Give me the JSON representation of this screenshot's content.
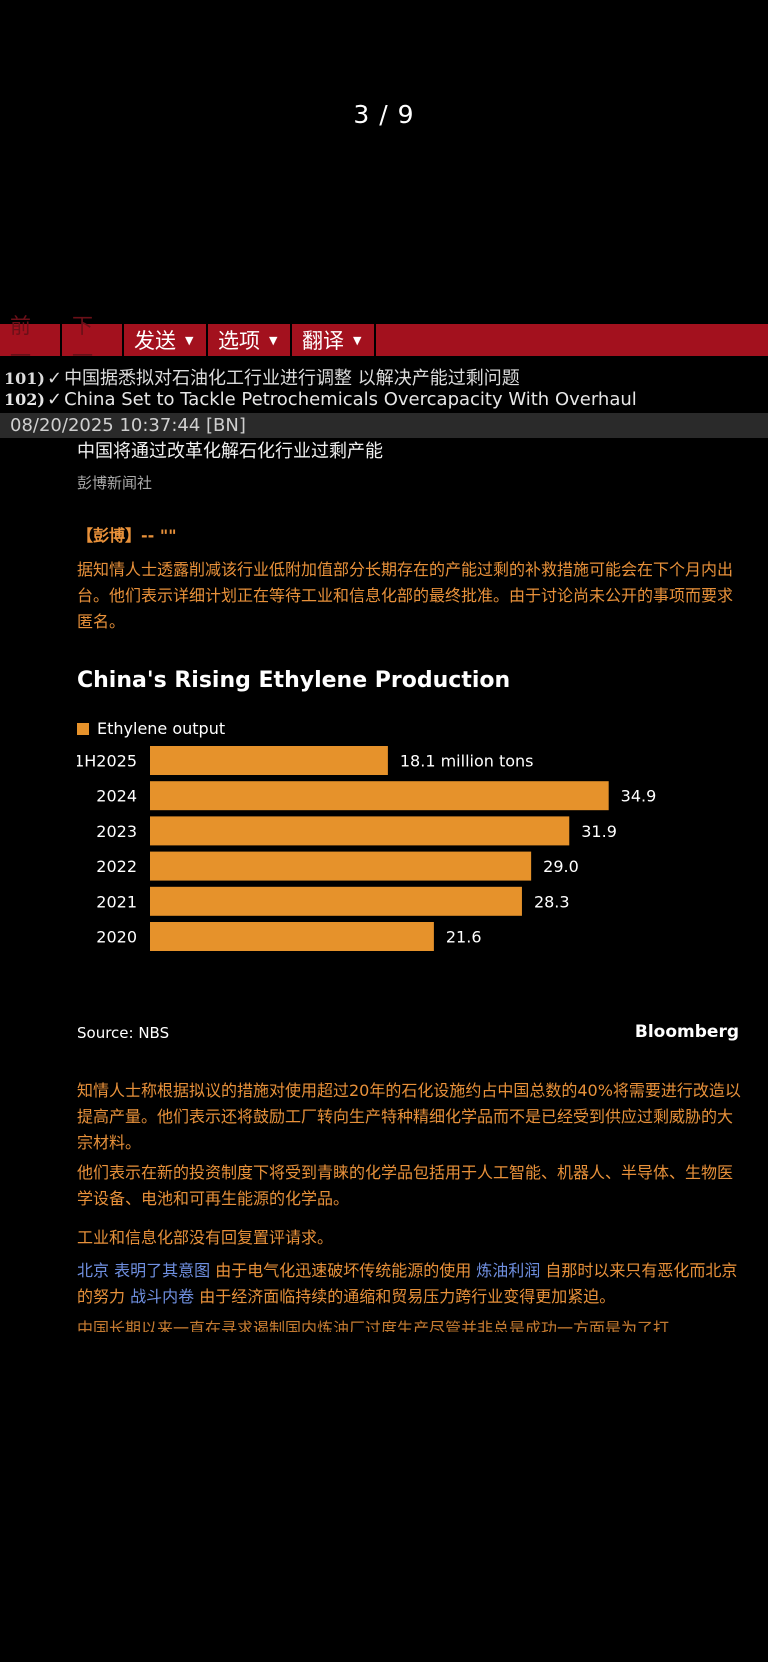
{
  "viewer": {
    "page_counter": "3 / 9"
  },
  "toolbar": {
    "prev_label": "前一",
    "next_label": "下一",
    "send_label": "发送",
    "options_label": "选项",
    "translate_label": "翻译"
  },
  "history": [
    {
      "num": "101)",
      "text": "中国据悉拟对石油化工行业进行调整 以解决产能过剩问题"
    },
    {
      "num": "102)",
      "text": "China Set to Tackle Petrochemicals Overcapacity With Overhaul"
    }
  ],
  "timestamp": "08/20/2025 10:37:44 [BN]",
  "article": {
    "title": "中国将通过改革化解石化行业过剩产能",
    "source": "彭博新闻社",
    "lead": "【彭博】-- \"\"",
    "p1": "据知情人士透露削减该行业低附加值部分长期存在的产能过剩的补救措施可能会在下个月内出台。他们表示详细计划正在等待工业和信息化部的最终批准。由于讨论尚未公开的事项而要求匿名。",
    "p2": "知情人士称根据拟议的措施对使用超过20年的石化设施约占中国总数的40%将需要进行改造以提高产量。他们表示还将鼓励工厂转向生产特种精细化学品而不是已经受到供应过剩威胁的大宗材料。",
    "p3": "他们表示在新的投资制度下将受到青睐的化学品包括用于人工智能、机器人、半导体、生物医学设备、电池和可再生能源的化学品。",
    "p4": "工业和信息化部没有回复置评请求。",
    "p5_parts": [
      {
        "t": "北京 ",
        "link": true
      },
      {
        "t": "表明了其意图",
        "link": true
      },
      {
        "t": " 由于电气化迅速破坏传统能源的使用 ",
        "link": false
      },
      {
        "t": "炼油利润",
        "link": true
      },
      {
        "t": " 自那时以来只有恶化而北京的努力 ",
        "link": false
      },
      {
        "t": "战斗内卷",
        "link": true
      },
      {
        "t": " 由于经济面临持续的通缩和贸易压力跨行业变得更加紧迫。",
        "link": false
      }
    ],
    "p6": "中国长期以来一直在寻求遏制国内炼油厂过度生产尽管并非总是成功一方面是为了打"
  },
  "chart_data": {
    "type": "bar",
    "orientation": "horizontal",
    "title": "China's Rising Ethylene Production",
    "legend": [
      "Ethylene output"
    ],
    "categories": [
      "1H2025",
      "2024",
      "2023",
      "2022",
      "2021",
      "2020"
    ],
    "values": [
      18.1,
      34.9,
      31.9,
      29.0,
      28.3,
      21.6
    ],
    "data_labels": [
      "18.1 million tons",
      "34.9",
      "31.9",
      "29.0",
      "28.3",
      "21.6"
    ],
    "bar_color": "#e6922b",
    "source": "Source: NBS",
    "brand": "Bloomberg"
  },
  "colors": {
    "accent_red": "#a3111e",
    "text_orange": "#e8913a",
    "link_blue": "#6f8fe0"
  }
}
